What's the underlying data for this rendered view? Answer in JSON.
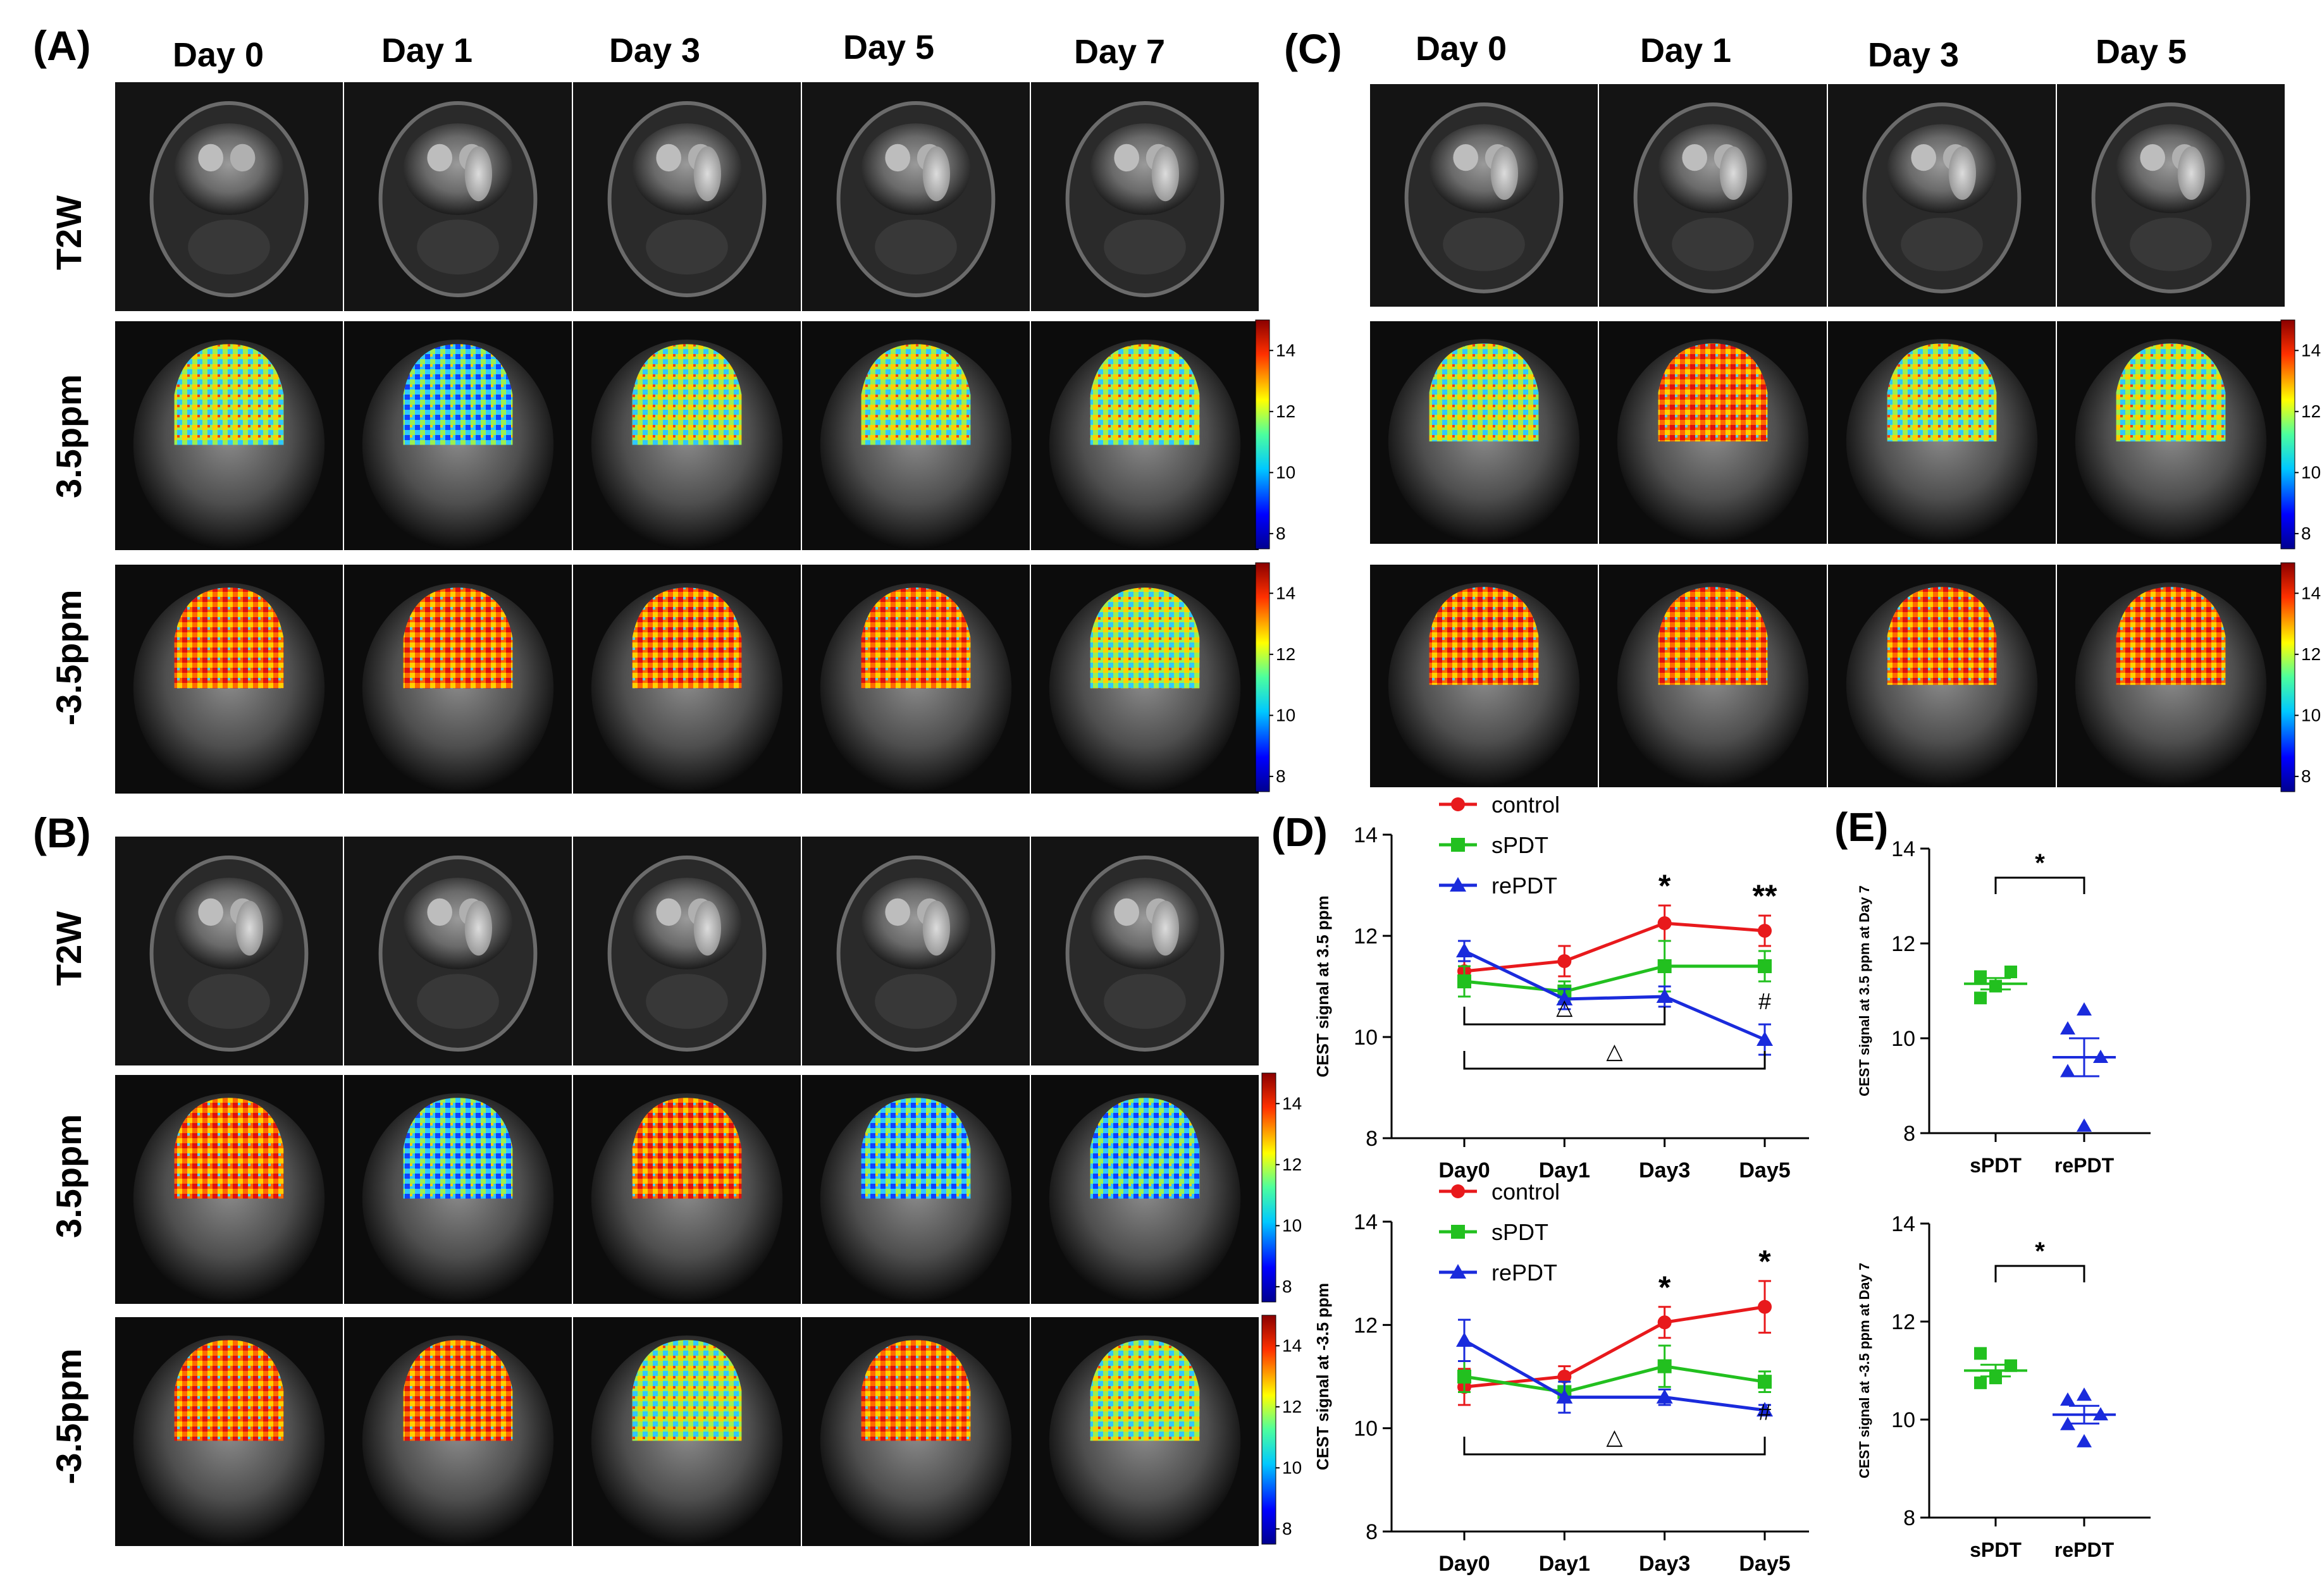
{
  "panels": {
    "A": {
      "label": "(A)",
      "days": [
        "Day 0",
        "Day 1",
        "Day 3",
        "Day 5",
        "Day 7"
      ],
      "rows": [
        "T2W",
        "3.5ppm",
        "-3.5ppm"
      ],
      "colorbar_ticks": [
        "14",
        "12",
        "10",
        "8"
      ]
    },
    "B": {
      "label": "(B)",
      "rows": [
        "T2W",
        "3.5ppm",
        "-3.5ppm"
      ],
      "colorbar_ticks": [
        "14",
        "12",
        "10",
        "8"
      ]
    },
    "C": {
      "label": "(C)",
      "days": [
        "Day 0",
        "Day 1",
        "Day 3",
        "Day 5"
      ],
      "colorbar_ticks": [
        "14",
        "12",
        "10",
        "8"
      ]
    },
    "D": {
      "label": "(D)"
    },
    "E": {
      "label": "(E)"
    }
  },
  "colors": {
    "control": "#e8191c",
    "sPDT": "#22c01f",
    "rePDT": "#1a2bdc"
  },
  "chart_data": [
    {
      "id": "D-top",
      "type": "line",
      "ylabel": "CEST signal at 3.5 ppm",
      "categories": [
        "Day0",
        "Day1",
        "Day3",
        "Day5"
      ],
      "ylim": [
        8,
        14
      ],
      "yticks": [
        "8",
        "10",
        "12",
        "14"
      ],
      "series": [
        {
          "name": "control",
          "values": [
            11.3,
            11.5,
            12.25,
            12.1
          ],
          "errors": [
            0.3,
            0.3,
            0.35,
            0.3
          ]
        },
        {
          "name": "sPDT",
          "values": [
            11.1,
            10.9,
            11.4,
            11.4
          ],
          "errors": [
            0.3,
            0.2,
            0.5,
            0.3
          ]
        },
        {
          "name": "rePDT",
          "values": [
            11.7,
            10.75,
            10.8,
            9.95
          ],
          "errors": [
            0.2,
            0.2,
            0.2,
            0.3
          ]
        }
      ],
      "marks": [
        {
          "category": "Day3",
          "text": "*"
        },
        {
          "category": "Day5",
          "text": "**"
        },
        {
          "category": "Day5",
          "text": "#"
        }
      ],
      "brackets": [
        {
          "from": "Day0",
          "to": "Day3",
          "text": "△"
        },
        {
          "from": "Day0",
          "to": "Day5",
          "text": "△"
        }
      ]
    },
    {
      "id": "D-bottom",
      "type": "line",
      "ylabel": "CEST signal at -3.5 ppm",
      "categories": [
        "Day0",
        "Day1",
        "Day3",
        "Day5"
      ],
      "ylim": [
        8,
        14
      ],
      "yticks": [
        "8",
        "10",
        "12",
        "14"
      ],
      "series": [
        {
          "name": "control",
          "values": [
            10.8,
            11.0,
            12.05,
            12.35
          ],
          "errors": [
            0.35,
            0.2,
            0.3,
            0.5
          ]
        },
        {
          "name": "sPDT",
          "values": [
            11.0,
            10.7,
            11.2,
            10.9
          ],
          "errors": [
            0.3,
            0.2,
            0.4,
            0.2
          ]
        },
        {
          "name": "rePDT",
          "values": [
            11.7,
            10.6,
            10.6,
            10.35
          ],
          "errors": [
            0.4,
            0.3,
            0.15,
            0.1
          ]
        }
      ],
      "marks": [
        {
          "category": "Day3",
          "text": "*"
        },
        {
          "category": "Day5",
          "text": "*"
        },
        {
          "category": "Day5",
          "text": "#"
        }
      ],
      "brackets": [
        {
          "from": "Day0",
          "to": "Day5",
          "text": "△"
        }
      ]
    },
    {
      "id": "E-top",
      "type": "scatter",
      "ylabel": "CEST signal at 3.5 ppm at Day 7",
      "categories": [
        "sPDT",
        "rePDT"
      ],
      "ylim": [
        8,
        14
      ],
      "yticks": [
        "8",
        "10",
        "12",
        "14"
      ],
      "groups": [
        {
          "name": "sPDT",
          "points": [
            11.3,
            11.4,
            11.1,
            10.85
          ],
          "mean": 11.15,
          "sem": 0.12
        },
        {
          "name": "rePDT",
          "points": [
            10.6,
            10.2,
            9.6,
            9.3,
            8.15
          ],
          "mean": 9.6,
          "sem": 0.4
        }
      ],
      "significance": "*"
    },
    {
      "id": "E-bottom",
      "type": "scatter",
      "ylabel": "CEST signal at -3.5 ppm at Day 7",
      "categories": [
        "sPDT",
        "rePDT"
      ],
      "ylim": [
        8,
        14
      ],
      "yticks": [
        "8",
        "10",
        "12",
        "14"
      ],
      "groups": [
        {
          "name": "sPDT",
          "points": [
            11.35,
            11.1,
            10.85,
            10.75
          ],
          "mean": 11.0,
          "sem": 0.12
        },
        {
          "name": "rePDT",
          "points": [
            10.5,
            10.4,
            10.1,
            9.9,
            9.55
          ],
          "mean": 10.1,
          "sem": 0.18
        }
      ],
      "significance": "*"
    }
  ]
}
